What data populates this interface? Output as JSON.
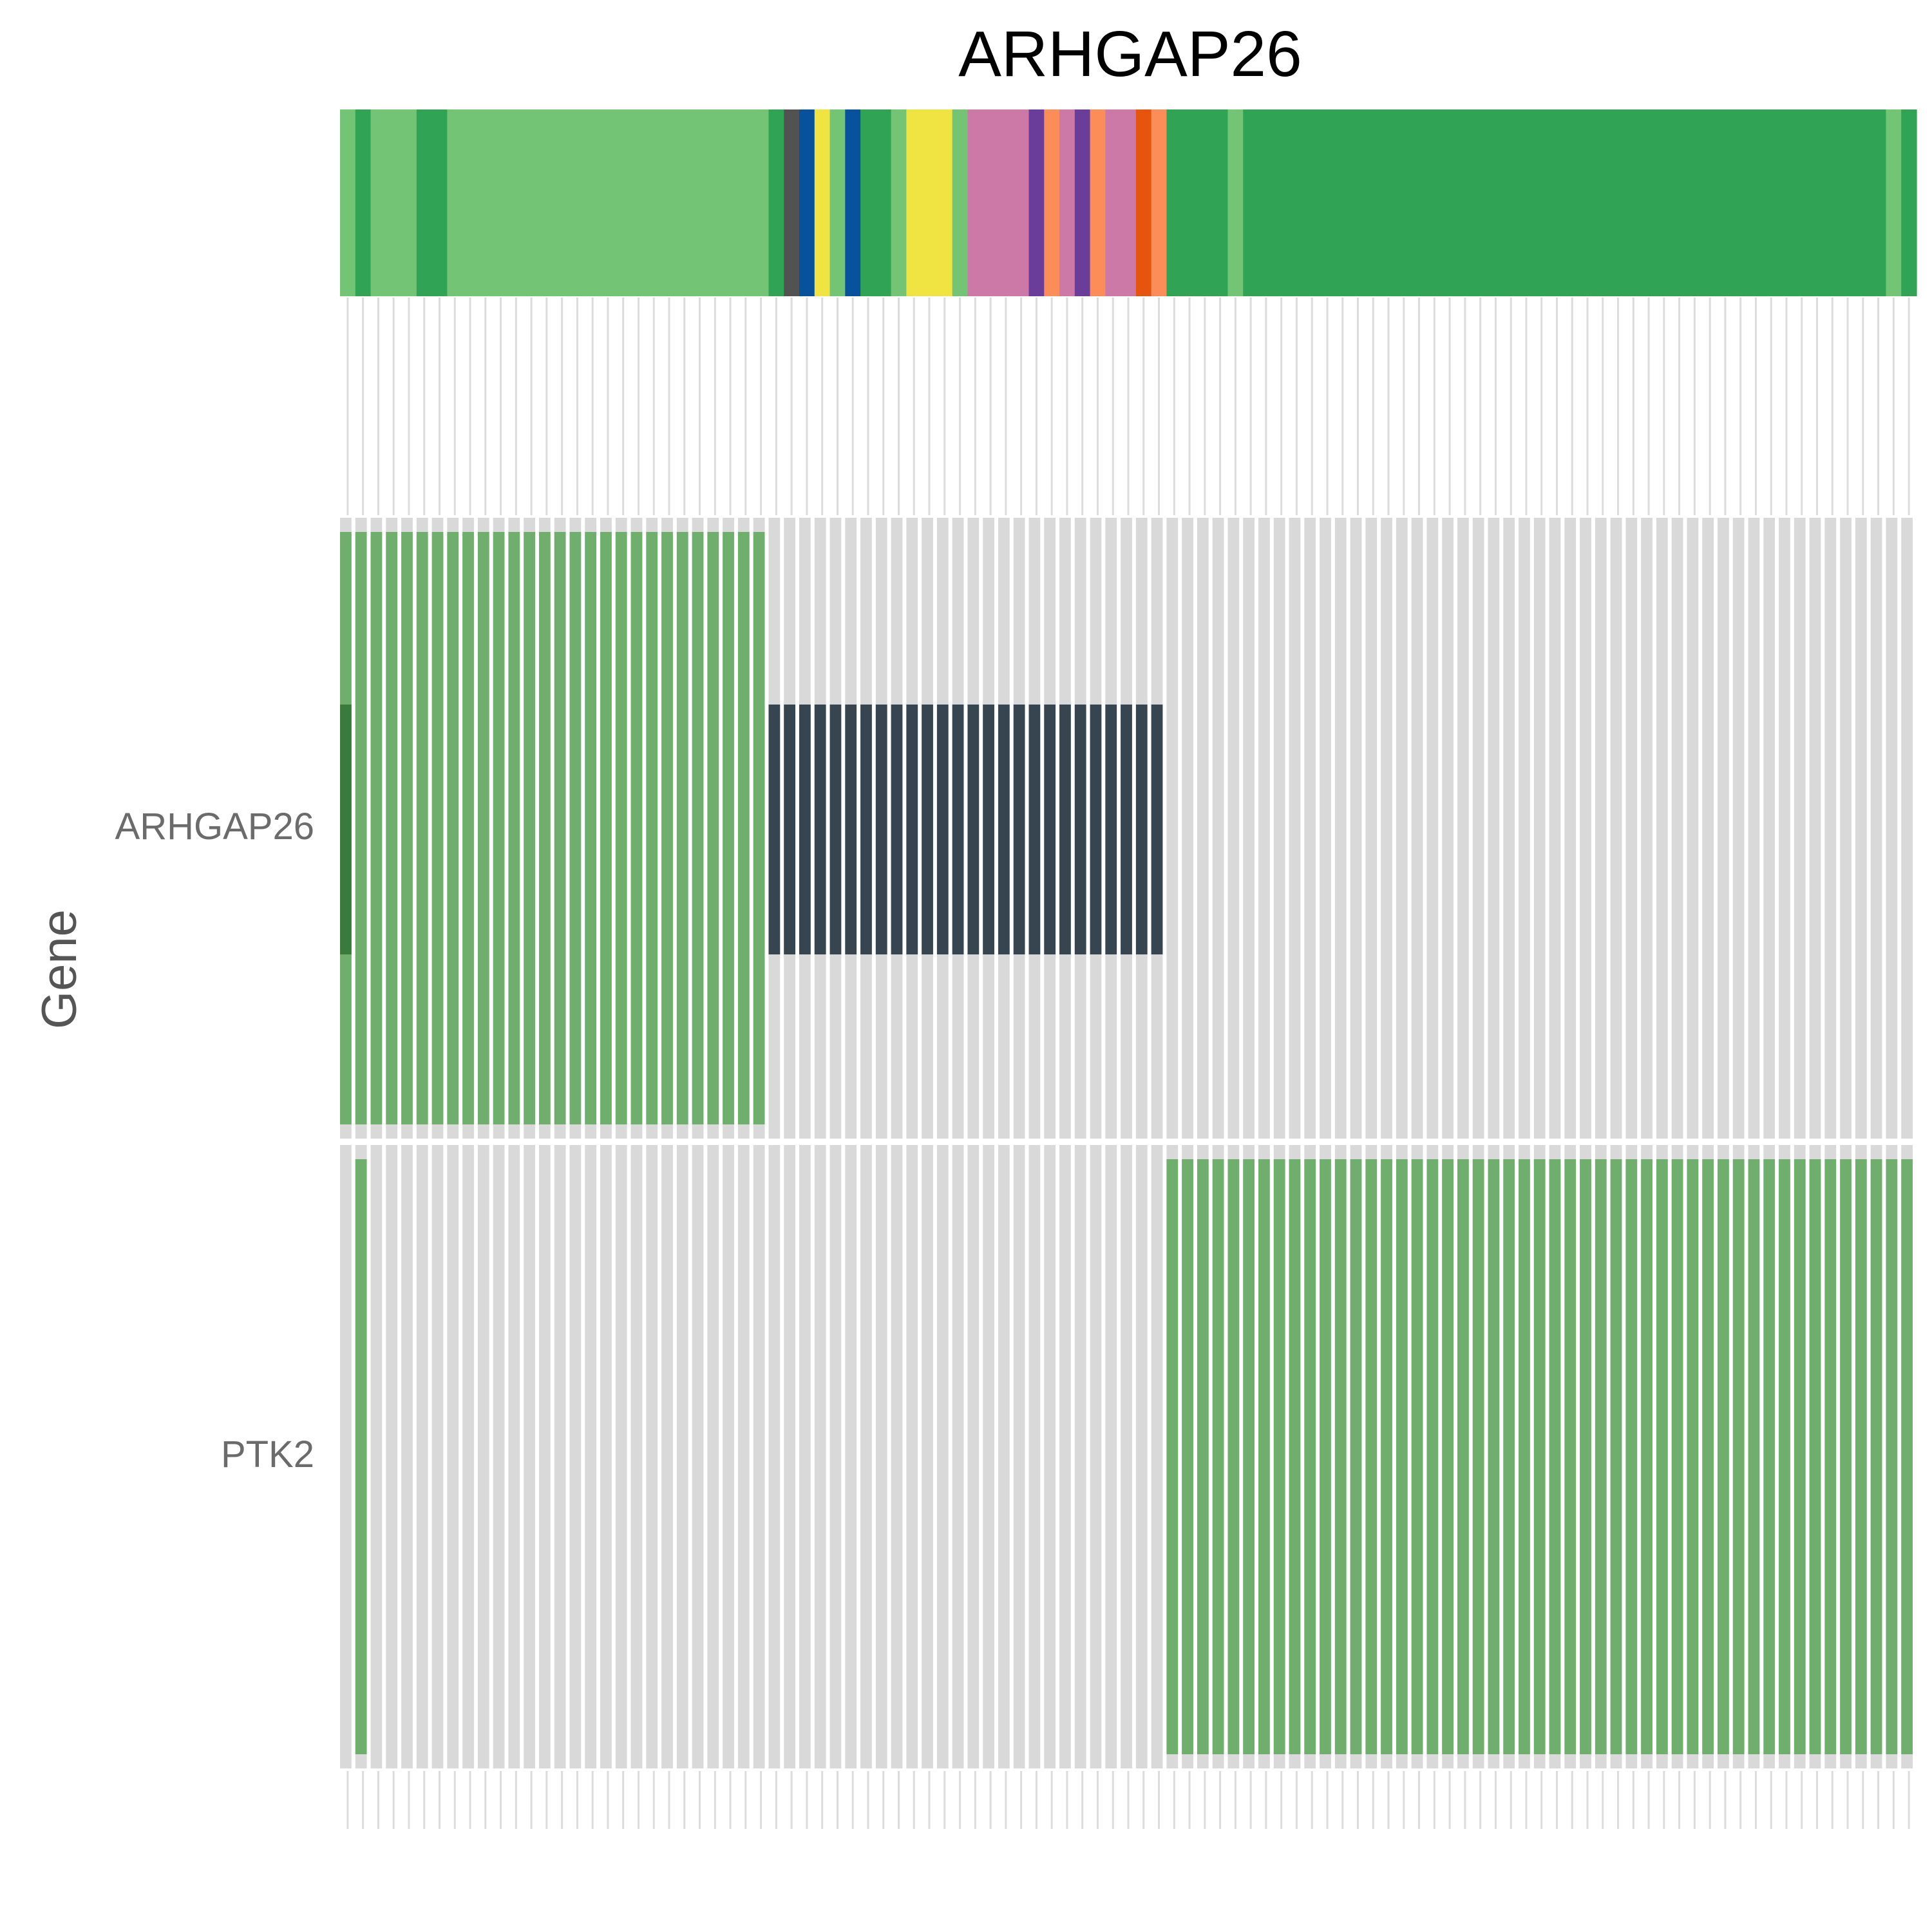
{
  "chart_data": {
    "type": "heatmap",
    "title": "ARHGAP26",
    "ylabel": "Gene",
    "genes": [
      "ARHGAP26",
      "PTK2"
    ],
    "n_samples": 103,
    "colors": {
      "background_track": "#d9d9d9",
      "amplification": "#70ae6e",
      "deep_deletion": "#36454f",
      "mutation": "#3a7a3d"
    },
    "annotation_palette": {
      "g1": "#74c476",
      "g2": "#31a354",
      "g3": "#525252",
      "g4": "#08519c",
      "g5": "#f0e442",
      "g6": "#cc79a7",
      "g7": "#fc8d59",
      "g8": "#6a3d9a",
      "g9": "#e6550d"
    },
    "annotation": [
      "g1",
      "g2",
      "g1",
      "g1",
      "g1",
      "g2",
      "g2",
      "g1",
      "g1",
      "g1",
      "g1",
      "g1",
      "g1",
      "g1",
      "g1",
      "g1",
      "g1",
      "g1",
      "g1",
      "g1",
      "g1",
      "g1",
      "g1",
      "g1",
      "g1",
      "g1",
      "g1",
      "g1",
      "g2",
      "g3",
      "g4",
      "g5",
      "g1",
      "g4",
      "g2",
      "g2",
      "g1",
      "g5",
      "g5",
      "g5",
      "g1",
      "g6",
      "g6",
      "g6",
      "g6",
      "g8",
      "g7",
      "g6",
      "g8",
      "g7",
      "g6",
      "g6",
      "g9",
      "g7",
      "g2",
      "g2",
      "g2",
      "g2",
      "g1",
      "g2",
      "g2",
      "g2",
      "g2",
      "g2",
      "g2",
      "g2",
      "g2",
      "g2",
      "g2",
      "g2",
      "g2",
      "g2",
      "g2",
      "g2",
      "g2",
      "g2",
      "g2",
      "g2",
      "g2",
      "g2",
      "g2",
      "g2",
      "g2",
      "g2",
      "g2",
      "g2",
      "g2",
      "g2",
      "g2",
      "g2",
      "g2",
      "g2",
      "g2",
      "g2",
      "g2",
      "g2",
      "g2",
      "g2",
      "g2",
      "g2",
      "g2",
      "g1",
      "g2"
    ],
    "alterations": {
      "ARHGAP26": {
        "amplification_samples": [
          0,
          27
        ],
        "deep_deletion_samples": [
          28,
          53
        ],
        "mutation_samples": [
          0,
          0
        ]
      },
      "PTK2": {
        "amplification_samples_list": [
          1
        ],
        "amplification_samples": [
          54,
          102
        ]
      }
    }
  }
}
